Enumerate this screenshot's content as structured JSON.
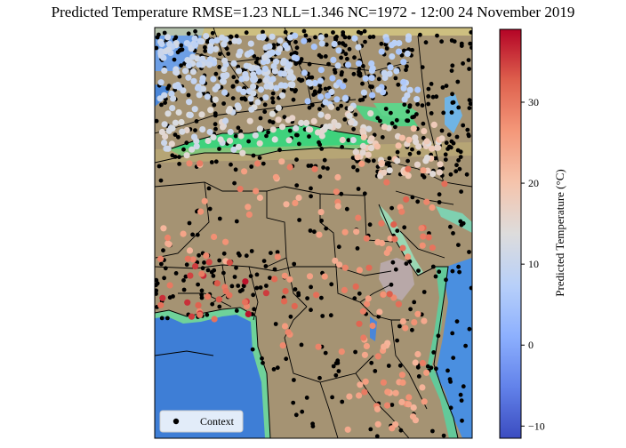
{
  "chart_data": {
    "type": "scatter",
    "title": "Predicted Temperature RMSE=1.23 NLL=1.346 NC=1972 - 12:00 24 November 2019",
    "colorbar": {
      "label": "Predicted Temperature (°C)",
      "min": -11.5,
      "max": 39,
      "ticks": [
        -10,
        0,
        10,
        20,
        30
      ],
      "colormap": "coolwarm"
    },
    "legend": {
      "placement": "lower-left",
      "entries": [
        "Context"
      ]
    },
    "context_color": "#000000"
  }
}
